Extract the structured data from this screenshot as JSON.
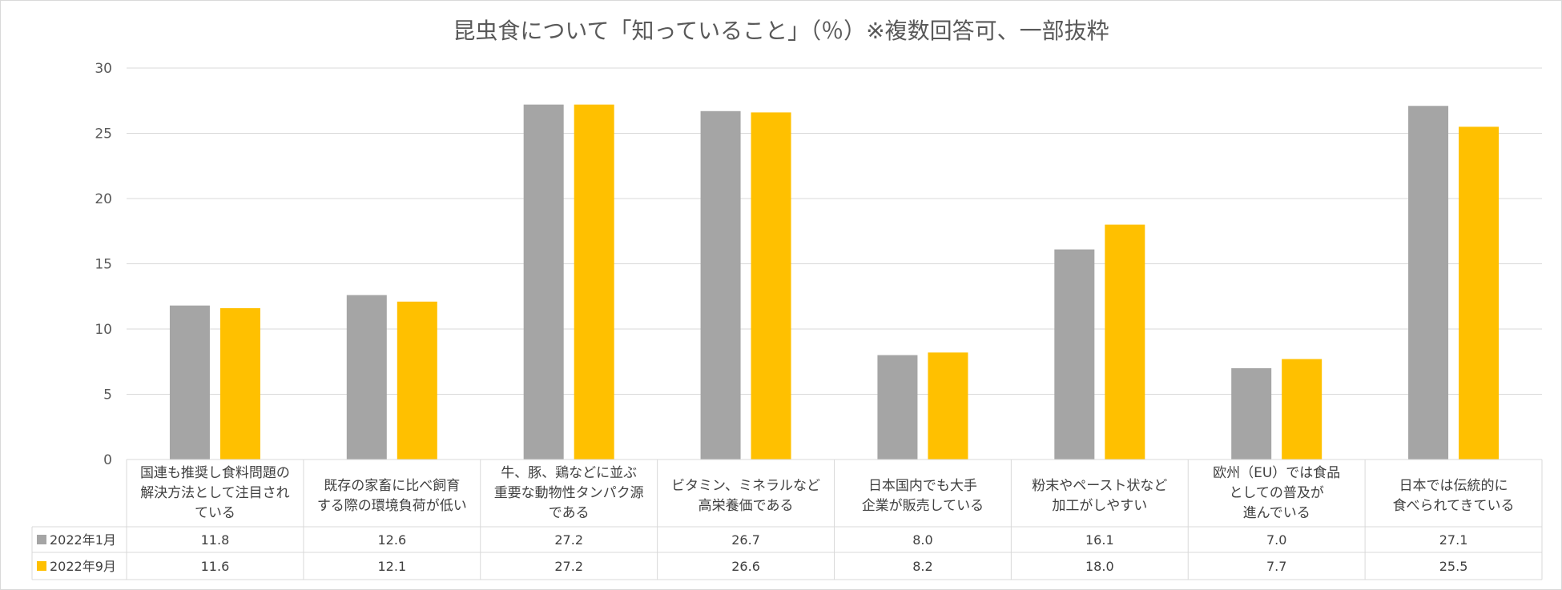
{
  "chart_data": {
    "type": "bar",
    "title": "昆虫食について「知っていること」（％）※複数回答可、一部抜粋",
    "ylim": [
      0,
      30
    ],
    "yticks": [
      0,
      5,
      10,
      15,
      20,
      25,
      30
    ],
    "grid": true,
    "legend": "data-table",
    "categories": [
      [
        "国連も推奨し食料問題の",
        "解決方法として注目され",
        "ている"
      ],
      [
        "既存の家畜に比べ飼育",
        "する際の環境負荷が低い"
      ],
      [
        "牛、豚、鶏などに並ぶ",
        "重要な動物性タンパク源",
        "である"
      ],
      [
        "ビタミン、ミネラルなど",
        "高栄養価である"
      ],
      [
        "日本国内でも大手",
        "企業が販売している"
      ],
      [
        "粉末やペースト状など",
        "加工がしやすい"
      ],
      [
        "欧州（EU）では食品",
        "としての普及が",
        "進んでいる"
      ],
      [
        "日本では伝統的に",
        "食べられてきている"
      ]
    ],
    "series": [
      {
        "name": "2022年1月",
        "color": "#a5a5a5",
        "values": [
          11.8,
          12.6,
          27.2,
          26.7,
          8.0,
          16.1,
          7.0,
          27.1
        ],
        "labels": [
          "11.8",
          "12.6",
          "27.2",
          "26.7",
          "8.0",
          "16.1",
          "7.0",
          "27.1"
        ]
      },
      {
        "name": "2022年9月",
        "color": "#ffc000",
        "values": [
          11.6,
          12.1,
          27.2,
          26.6,
          8.2,
          18.0,
          7.7,
          25.5
        ],
        "labels": [
          "11.6",
          "12.1",
          "27.2",
          "26.6",
          "8.2",
          "18.0",
          "7.7",
          "25.5"
        ]
      }
    ]
  }
}
